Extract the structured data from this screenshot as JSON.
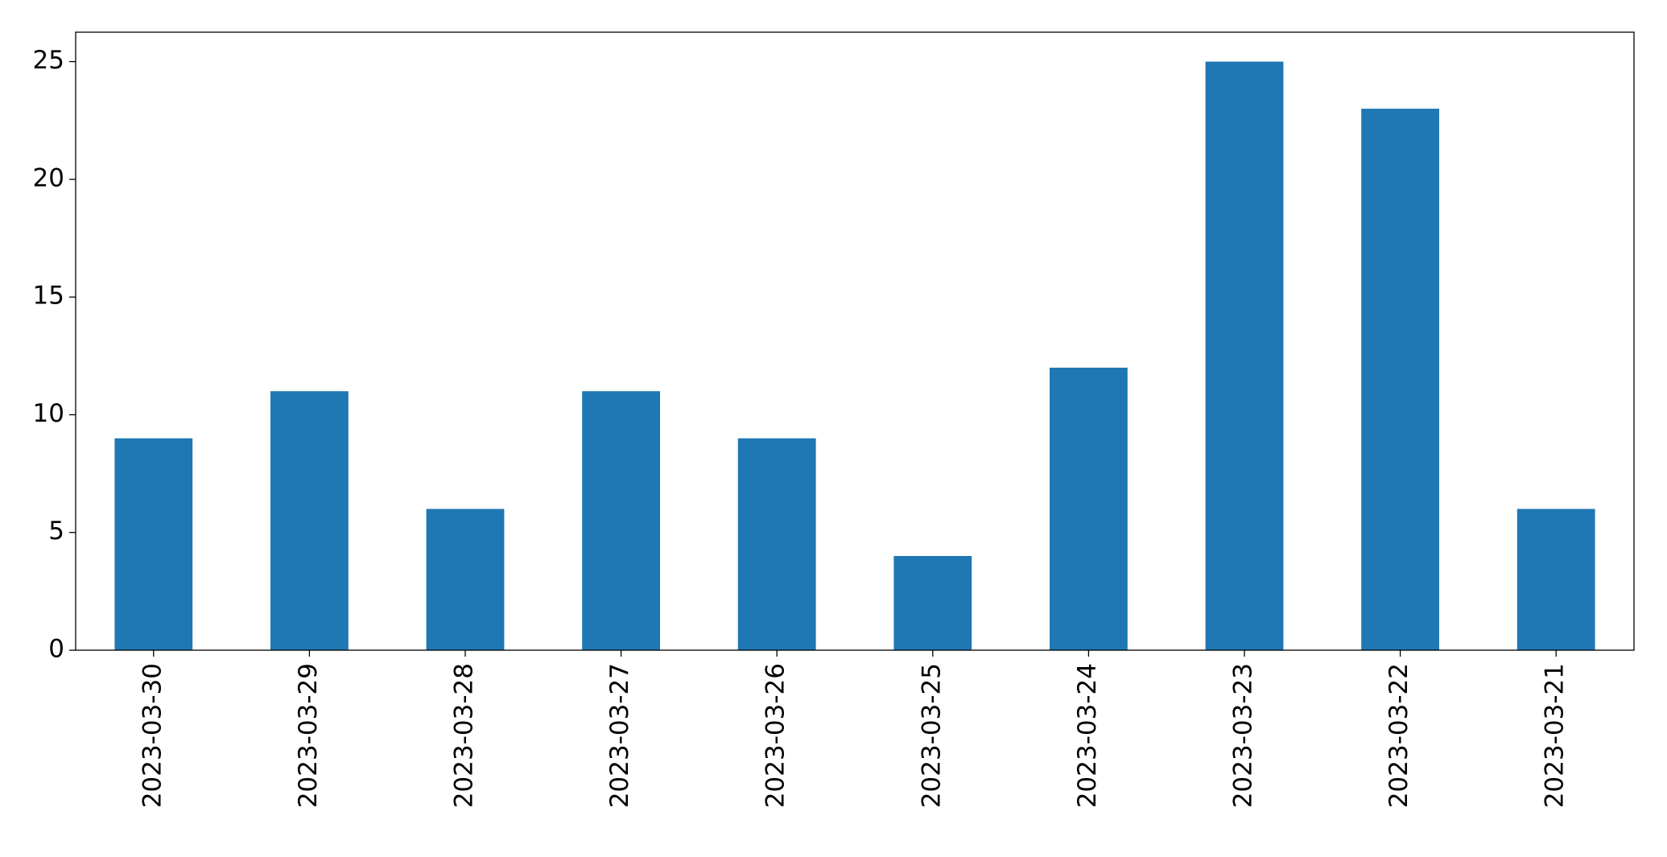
{
  "chart_data": {
    "type": "bar",
    "categories": [
      "2023-03-30",
      "2023-03-29",
      "2023-03-28",
      "2023-03-27",
      "2023-03-26",
      "2023-03-25",
      "2023-03-24",
      "2023-03-23",
      "2023-03-22",
      "2023-03-21"
    ],
    "values": [
      9,
      11,
      6,
      11,
      9,
      4,
      12,
      25,
      23,
      6
    ],
    "color": "#1f77b4",
    "ylim": [
      0,
      26.25
    ],
    "yticks": [
      0,
      5,
      10,
      15,
      20,
      25
    ],
    "grid": false
  }
}
